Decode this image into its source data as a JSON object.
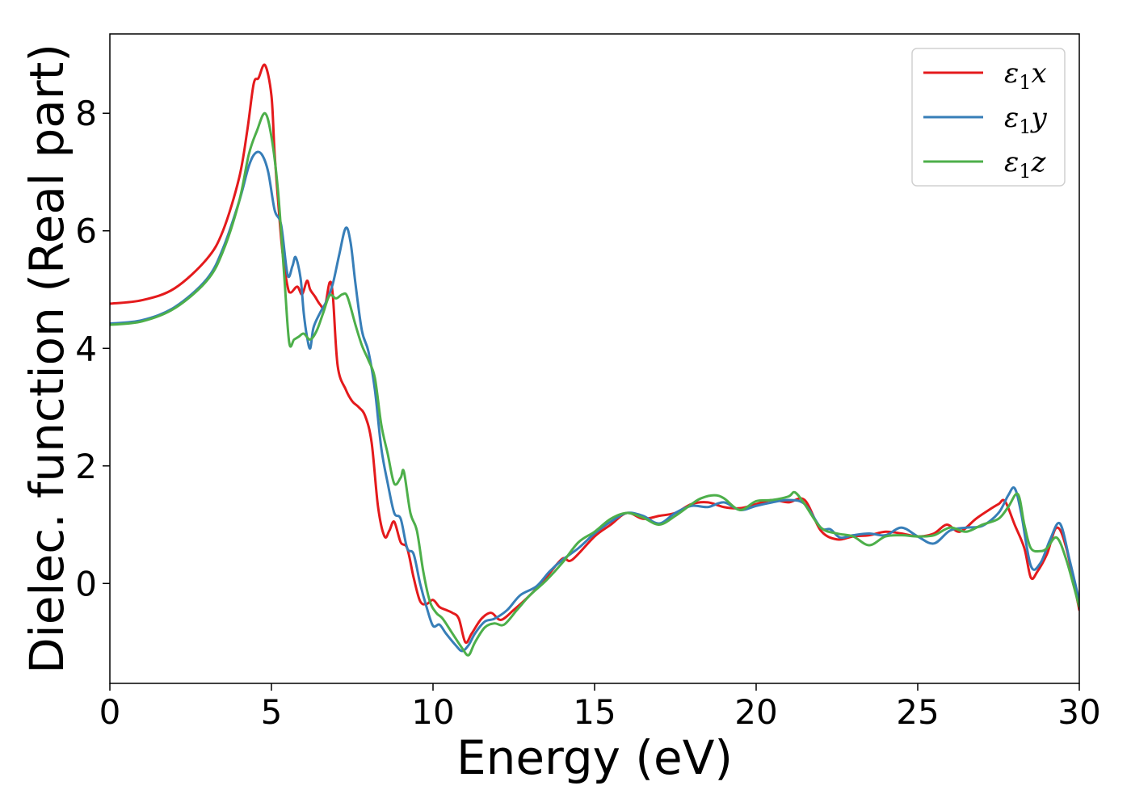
{
  "chart_data": {
    "type": "line",
    "title": "",
    "xlabel": "Energy (eV)",
    "ylabel": "Dielec. function (Real part)",
    "xlim": [
      0,
      30
    ],
    "ylim": [
      -1.7,
      9.35
    ],
    "x_ticks": [
      0,
      5,
      10,
      15,
      20,
      25,
      30
    ],
    "y_ticks": [
      0,
      2,
      4,
      6,
      8
    ],
    "grid": false,
    "legend_position": "top-right",
    "series": [
      {
        "name": "ε1x",
        "legend": {
          "greek": "ε",
          "sub": "1",
          "axis": "x"
        },
        "color": "#e41a1c",
        "points": [
          [
            0,
            4.76
          ],
          [
            1,
            4.82
          ],
          [
            2,
            5.02
          ],
          [
            3,
            5.52
          ],
          [
            3.5,
            6.0
          ],
          [
            4,
            6.9
          ],
          [
            4.25,
            7.7
          ],
          [
            4.45,
            8.5
          ],
          [
            4.6,
            8.6
          ],
          [
            4.8,
            8.82
          ],
          [
            5.0,
            8.3
          ],
          [
            5.1,
            7.3
          ],
          [
            5.25,
            6.2
          ],
          [
            5.35,
            5.6
          ],
          [
            5.5,
            5.05
          ],
          [
            5.6,
            4.95
          ],
          [
            5.8,
            5.05
          ],
          [
            5.95,
            4.92
          ],
          [
            6.1,
            5.15
          ],
          [
            6.2,
            5.0
          ],
          [
            6.35,
            4.88
          ],
          [
            6.5,
            4.75
          ],
          [
            6.65,
            4.7
          ],
          [
            6.8,
            5.12
          ],
          [
            6.9,
            4.9
          ],
          [
            7.05,
            3.7
          ],
          [
            7.3,
            3.3
          ],
          [
            7.5,
            3.1
          ],
          [
            7.7,
            3.0
          ],
          [
            7.9,
            2.85
          ],
          [
            8.1,
            2.4
          ],
          [
            8.3,
            1.3
          ],
          [
            8.5,
            0.8
          ],
          [
            8.65,
            0.9
          ],
          [
            8.8,
            1.05
          ],
          [
            9.0,
            0.7
          ],
          [
            9.2,
            0.6
          ],
          [
            9.4,
            0.1
          ],
          [
            9.6,
            -0.3
          ],
          [
            9.8,
            -0.35
          ],
          [
            10.0,
            -0.28
          ],
          [
            10.2,
            -0.4
          ],
          [
            10.4,
            -0.45
          ],
          [
            10.6,
            -0.5
          ],
          [
            10.8,
            -0.6
          ],
          [
            11.0,
            -1.0
          ],
          [
            11.2,
            -0.85
          ],
          [
            11.5,
            -0.6
          ],
          [
            11.8,
            -0.5
          ],
          [
            12.1,
            -0.62
          ],
          [
            12.5,
            -0.45
          ],
          [
            13.0,
            -0.2
          ],
          [
            13.5,
            0.1
          ],
          [
            14.0,
            0.42
          ],
          [
            14.3,
            0.4
          ],
          [
            15.0,
            0.8
          ],
          [
            15.5,
            1.0
          ],
          [
            16.0,
            1.2
          ],
          [
            16.5,
            1.1
          ],
          [
            17.0,
            1.15
          ],
          [
            17.5,
            1.2
          ],
          [
            18.0,
            1.35
          ],
          [
            18.5,
            1.38
          ],
          [
            19.0,
            1.3
          ],
          [
            19.5,
            1.28
          ],
          [
            20.0,
            1.35
          ],
          [
            20.5,
            1.42
          ],
          [
            21.0,
            1.38
          ],
          [
            21.5,
            1.42
          ],
          [
            22.0,
            0.9
          ],
          [
            22.5,
            0.75
          ],
          [
            23.0,
            0.8
          ],
          [
            23.5,
            0.82
          ],
          [
            24.0,
            0.88
          ],
          [
            24.5,
            0.85
          ],
          [
            25.0,
            0.8
          ],
          [
            25.5,
            0.85
          ],
          [
            25.9,
            1.0
          ],
          [
            26.3,
            0.88
          ],
          [
            26.8,
            1.1
          ],
          [
            27.2,
            1.25
          ],
          [
            27.5,
            1.35
          ],
          [
            27.7,
            1.4
          ],
          [
            28.0,
            1.0
          ],
          [
            28.3,
            0.6
          ],
          [
            28.5,
            0.1
          ],
          [
            28.7,
            0.2
          ],
          [
            29.0,
            0.5
          ],
          [
            29.3,
            0.95
          ],
          [
            29.6,
            0.6
          ],
          [
            30.0,
            -0.45
          ]
        ]
      },
      {
        "name": "ε1y",
        "legend": {
          "greek": "ε",
          "sub": "1",
          "axis": "y"
        },
        "color": "#377eb8",
        "points": [
          [
            0,
            4.42
          ],
          [
            1,
            4.48
          ],
          [
            2,
            4.7
          ],
          [
            3,
            5.18
          ],
          [
            3.5,
            5.7
          ],
          [
            4,
            6.5
          ],
          [
            4.3,
            7.1
          ],
          [
            4.5,
            7.32
          ],
          [
            4.7,
            7.3
          ],
          [
            4.9,
            7.0
          ],
          [
            5.1,
            6.35
          ],
          [
            5.3,
            6.1
          ],
          [
            5.5,
            5.25
          ],
          [
            5.65,
            5.4
          ],
          [
            5.75,
            5.55
          ],
          [
            5.9,
            5.2
          ],
          [
            6.0,
            4.6
          ],
          [
            6.1,
            4.2
          ],
          [
            6.2,
            4.0
          ],
          [
            6.3,
            4.35
          ],
          [
            6.5,
            4.6
          ],
          [
            6.7,
            4.8
          ],
          [
            6.9,
            5.1
          ],
          [
            7.1,
            5.6
          ],
          [
            7.3,
            6.05
          ],
          [
            7.45,
            5.8
          ],
          [
            7.6,
            5.1
          ],
          [
            7.8,
            4.3
          ],
          [
            8.0,
            3.95
          ],
          [
            8.2,
            3.3
          ],
          [
            8.4,
            2.3
          ],
          [
            8.6,
            1.7
          ],
          [
            8.8,
            1.2
          ],
          [
            9.0,
            1.1
          ],
          [
            9.2,
            0.6
          ],
          [
            9.4,
            0.5
          ],
          [
            9.6,
            0.0
          ],
          [
            9.8,
            -0.4
          ],
          [
            10.0,
            -0.72
          ],
          [
            10.2,
            -0.7
          ],
          [
            10.4,
            -0.85
          ],
          [
            10.7,
            -1.05
          ],
          [
            10.9,
            -1.15
          ],
          [
            11.1,
            -1.05
          ],
          [
            11.3,
            -0.85
          ],
          [
            11.6,
            -0.65
          ],
          [
            11.9,
            -0.6
          ],
          [
            12.3,
            -0.45
          ],
          [
            12.7,
            -0.2
          ],
          [
            13.2,
            -0.05
          ],
          [
            13.6,
            0.2
          ],
          [
            14.0,
            0.4
          ],
          [
            14.5,
            0.6
          ],
          [
            15.0,
            0.85
          ],
          [
            15.5,
            1.05
          ],
          [
            16.0,
            1.2
          ],
          [
            16.5,
            1.15
          ],
          [
            17.0,
            1.02
          ],
          [
            17.5,
            1.2
          ],
          [
            18.0,
            1.32
          ],
          [
            18.5,
            1.3
          ],
          [
            19.0,
            1.38
          ],
          [
            19.5,
            1.25
          ],
          [
            20.0,
            1.32
          ],
          [
            20.5,
            1.38
          ],
          [
            21.0,
            1.42
          ],
          [
            21.5,
            1.35
          ],
          [
            22.0,
            0.95
          ],
          [
            22.3,
            0.92
          ],
          [
            22.6,
            0.78
          ],
          [
            23.0,
            0.82
          ],
          [
            23.5,
            0.85
          ],
          [
            24.0,
            0.82
          ],
          [
            24.5,
            0.95
          ],
          [
            25.0,
            0.8
          ],
          [
            25.5,
            0.68
          ],
          [
            26.0,
            0.9
          ],
          [
            26.5,
            0.95
          ],
          [
            27.0,
            0.98
          ],
          [
            27.5,
            1.2
          ],
          [
            27.8,
            1.5
          ],
          [
            28.0,
            1.62
          ],
          [
            28.2,
            1.2
          ],
          [
            28.5,
            0.3
          ],
          [
            28.8,
            0.35
          ],
          [
            29.1,
            0.75
          ],
          [
            29.4,
            1.02
          ],
          [
            29.7,
            0.4
          ],
          [
            30.0,
            -0.3
          ]
        ]
      },
      {
        "name": "ε1z",
        "legend": {
          "greek": "ε",
          "sub": "1",
          "axis": "z"
        },
        "color": "#4daf4a",
        "points": [
          [
            0,
            4.4
          ],
          [
            1,
            4.46
          ],
          [
            2,
            4.68
          ],
          [
            3,
            5.15
          ],
          [
            3.5,
            5.65
          ],
          [
            4,
            6.5
          ],
          [
            4.3,
            7.3
          ],
          [
            4.55,
            7.7
          ],
          [
            4.8,
            8.0
          ],
          [
            5.0,
            7.6
          ],
          [
            5.2,
            6.7
          ],
          [
            5.4,
            5.2
          ],
          [
            5.55,
            4.1
          ],
          [
            5.7,
            4.15
          ],
          [
            5.85,
            4.2
          ],
          [
            6.0,
            4.25
          ],
          [
            6.2,
            4.15
          ],
          [
            6.4,
            4.3
          ],
          [
            6.6,
            4.6
          ],
          [
            6.8,
            4.9
          ],
          [
            7.0,
            4.85
          ],
          [
            7.2,
            4.92
          ],
          [
            7.35,
            4.88
          ],
          [
            7.6,
            4.4
          ],
          [
            7.8,
            4.05
          ],
          [
            8.0,
            3.8
          ],
          [
            8.2,
            3.5
          ],
          [
            8.4,
            2.7
          ],
          [
            8.6,
            2.2
          ],
          [
            8.8,
            1.7
          ],
          [
            9.0,
            1.8
          ],
          [
            9.1,
            1.9
          ],
          [
            9.3,
            1.2
          ],
          [
            9.5,
            0.9
          ],
          [
            9.7,
            0.2
          ],
          [
            9.9,
            -0.3
          ],
          [
            10.1,
            -0.5
          ],
          [
            10.3,
            -0.6
          ],
          [
            10.6,
            -0.85
          ],
          [
            10.9,
            -1.1
          ],
          [
            11.1,
            -1.22
          ],
          [
            11.3,
            -1.0
          ],
          [
            11.6,
            -0.75
          ],
          [
            11.9,
            -0.68
          ],
          [
            12.2,
            -0.7
          ],
          [
            12.6,
            -0.45
          ],
          [
            13.0,
            -0.2
          ],
          [
            13.5,
            0.05
          ],
          [
            14.0,
            0.35
          ],
          [
            14.5,
            0.7
          ],
          [
            15.0,
            0.88
          ],
          [
            15.5,
            1.1
          ],
          [
            16.0,
            1.2
          ],
          [
            16.5,
            1.12
          ],
          [
            17.0,
            1.0
          ],
          [
            17.5,
            1.15
          ],
          [
            18.0,
            1.35
          ],
          [
            18.3,
            1.45
          ],
          [
            18.7,
            1.5
          ],
          [
            19.0,
            1.45
          ],
          [
            19.5,
            1.25
          ],
          [
            20.0,
            1.4
          ],
          [
            20.5,
            1.42
          ],
          [
            21.0,
            1.48
          ],
          [
            21.2,
            1.55
          ],
          [
            21.5,
            1.35
          ],
          [
            22.0,
            0.95
          ],
          [
            22.5,
            0.85
          ],
          [
            23.0,
            0.8
          ],
          [
            23.5,
            0.65
          ],
          [
            24.0,
            0.8
          ],
          [
            24.5,
            0.82
          ],
          [
            25.0,
            0.8
          ],
          [
            25.5,
            0.82
          ],
          [
            26.0,
            0.95
          ],
          [
            26.5,
            0.88
          ],
          [
            27.0,
            1.0
          ],
          [
            27.5,
            1.1
          ],
          [
            27.8,
            1.3
          ],
          [
            28.1,
            1.52
          ],
          [
            28.3,
            1.0
          ],
          [
            28.5,
            0.6
          ],
          [
            28.8,
            0.55
          ],
          [
            29.0,
            0.6
          ],
          [
            29.3,
            0.78
          ],
          [
            29.6,
            0.4
          ],
          [
            30.0,
            -0.4
          ]
        ]
      }
    ]
  }
}
